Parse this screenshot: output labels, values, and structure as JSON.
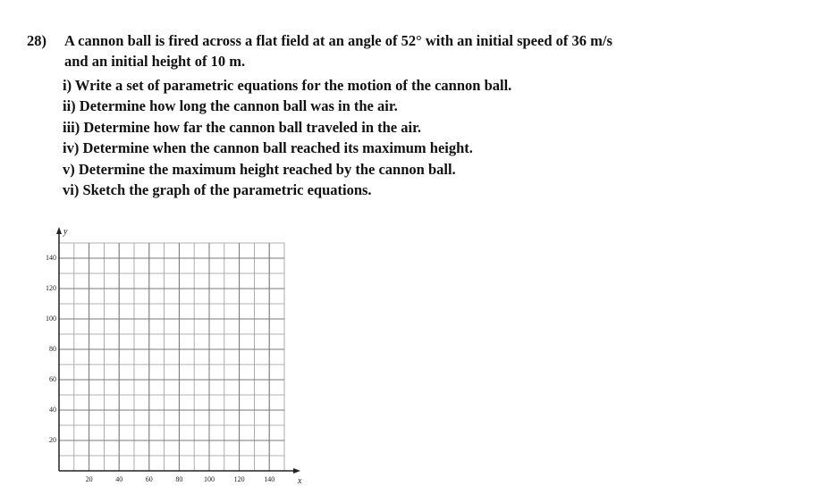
{
  "problem": {
    "number": "28)",
    "lines": [
      "A cannon ball is fired across a flat field at an angle of 52° with an initial speed of 36 m/s",
      "and an initial height of 10 m.",
      "i) Write a set of parametric equations for the motion of the cannon ball.",
      "ii) Determine how long the cannon ball was in the air.",
      "iii) Determine how far the cannon ball traveled in the air.",
      "iv) Determine when the cannon ball reached its maximum height.",
      "v) Determine the maximum height reached by the cannon ball.",
      "vi) Sketch the graph of the parametric equations."
    ]
  },
  "graph": {
    "x_label": "x",
    "y_label": "y",
    "xlim": [
      0,
      150
    ],
    "ylim": [
      0,
      150
    ],
    "xticks": [
      20,
      40,
      60,
      80,
      100,
      120,
      140
    ],
    "yticks": [
      20,
      40,
      60,
      80,
      100,
      120,
      140
    ]
  }
}
